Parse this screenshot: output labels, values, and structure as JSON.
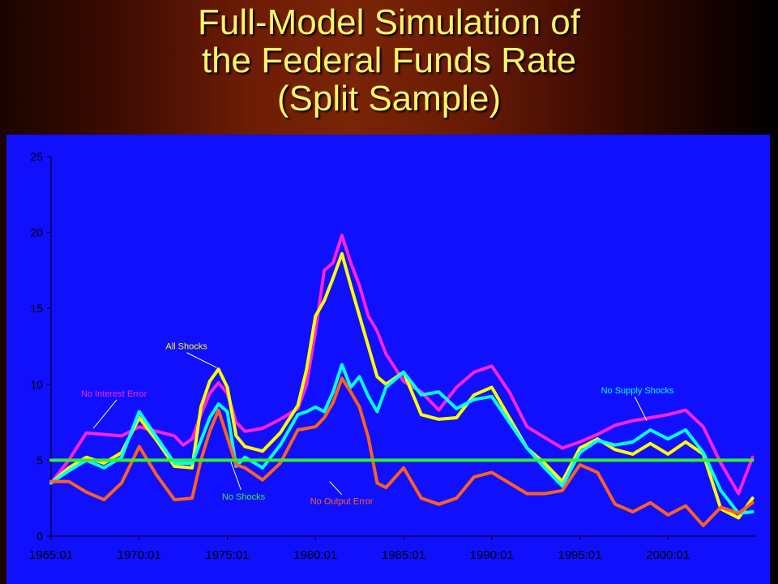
{
  "slide_title_lines": [
    "Full-Model Simulation of",
    "the Federal Funds Rate",
    "(Split Sample)"
  ],
  "chart_data": {
    "type": "line",
    "title": "",
    "xlabel": "",
    "ylabel": "",
    "ylim": [
      0,
      25
    ],
    "y_ticks": [
      0,
      5,
      10,
      15,
      20,
      25
    ],
    "x_ticks": [
      "1965:01",
      "1970:01",
      "1975:01",
      "1980:01",
      "1985:01",
      "1990:01",
      "1995:01",
      "2000:01"
    ],
    "xlim": [
      1965,
      2005
    ],
    "colors": {
      "plot_bg": "#1010ff",
      "all_shocks": "#ffff00",
      "no_interest": "#ff22dd",
      "no_supply": "#00ffff",
      "no_output": "#ff6020",
      "no_shocks": "#33ee33"
    },
    "series": [
      {
        "key": "no_interest",
        "x": [
          1965.0,
          1966.0,
          1967.0,
          1968.0,
          1969.0,
          1970.0,
          1971.0,
          1972.0,
          1972.5,
          1973.0,
          1973.5,
          1974.0,
          1974.5,
          1975.0,
          1975.5,
          1976.0,
          1977.0,
          1978.0,
          1979.0,
          1979.5,
          1980.0,
          1980.5,
          1981.0,
          1981.5,
          1982.0,
          1982.5,
          1983.0,
          1983.5,
          1984.0,
          1985.0,
          1986.0,
          1987.0,
          1988.0,
          1989.0,
          1990.0,
          1991.0,
          1992.0,
          1993.0,
          1994.0,
          1995.0,
          1996.0,
          1997.0,
          1998.0,
          1999.0,
          2000.0,
          2001.0,
          2002.0,
          2003.0,
          2004.0,
          2004.8
        ],
        "y": [
          3.5,
          5.0,
          6.8,
          6.7,
          6.6,
          7.2,
          6.9,
          6.6,
          6.0,
          6.4,
          8.0,
          9.4,
          10.1,
          9.4,
          7.5,
          6.9,
          7.1,
          7.7,
          8.4,
          10.0,
          13.5,
          17.5,
          18.0,
          19.8,
          18.0,
          16.5,
          14.5,
          13.5,
          12.0,
          10.2,
          9.5,
          8.3,
          9.8,
          10.8,
          11.2,
          9.5,
          7.2,
          6.5,
          5.8,
          6.2,
          6.7,
          7.3,
          7.6,
          7.8,
          8.0,
          8.3,
          7.2,
          4.8,
          2.8,
          5.2
        ]
      },
      {
        "key": "all_shocks",
        "x": [
          1965.0,
          1966.0,
          1967.0,
          1968.0,
          1969.0,
          1970.0,
          1971.0,
          1972.0,
          1973.0,
          1973.5,
          1974.0,
          1974.5,
          1975.0,
          1975.5,
          1976.0,
          1977.0,
          1978.0,
          1979.0,
          1979.5,
          1980.0,
          1980.5,
          1981.0,
          1981.5,
          1982.0,
          1982.5,
          1983.0,
          1983.5,
          1984.0,
          1985.0,
          1986.0,
          1987.0,
          1988.0,
          1989.0,
          1990.0,
          1991.0,
          1992.0,
          1993.0,
          1994.0,
          1995.0,
          1996.0,
          1997.0,
          1998.0,
          1999.0,
          2000.0,
          2001.0,
          2002.0,
          2003.0,
          2004.0,
          2004.8
        ],
        "y": [
          3.5,
          4.5,
          5.2,
          4.8,
          5.5,
          7.8,
          6.3,
          4.6,
          4.5,
          8.5,
          10.2,
          11.0,
          9.8,
          6.6,
          5.9,
          5.6,
          6.8,
          8.6,
          11.0,
          14.5,
          15.5,
          17.0,
          18.6,
          16.5,
          14.5,
          12.5,
          10.5,
          10.0,
          10.8,
          8.0,
          7.7,
          7.8,
          9.3,
          9.8,
          7.8,
          5.8,
          4.8,
          3.6,
          5.8,
          6.4,
          5.7,
          5.4,
          6.1,
          5.4,
          6.2,
          5.4,
          1.8,
          1.2,
          2.5
        ]
      },
      {
        "key": "no_supply",
        "x": [
          1965.0,
          1966.0,
          1967.0,
          1968.0,
          1969.0,
          1970.0,
          1971.0,
          1972.0,
          1973.0,
          1973.5,
          1974.0,
          1974.5,
          1975.0,
          1975.5,
          1976.0,
          1977.0,
          1978.0,
          1979.0,
          1979.5,
          1980.0,
          1980.5,
          1981.0,
          1981.5,
          1982.0,
          1982.5,
          1983.0,
          1983.5,
          1984.0,
          1985.0,
          1986.0,
          1987.0,
          1988.0,
          1989.0,
          1990.0,
          1991.0,
          1992.0,
          1993.0,
          1994.0,
          1995.0,
          1996.0,
          1997.0,
          1998.0,
          1999.0,
          2000.0,
          2001.0,
          2002.0,
          2003.0,
          2004.0,
          2004.8
        ],
        "y": [
          3.5,
          4.3,
          5.0,
          4.5,
          5.2,
          8.2,
          6.5,
          4.8,
          4.8,
          6.3,
          7.8,
          8.7,
          8.2,
          4.6,
          5.2,
          4.5,
          6.0,
          8.0,
          8.2,
          8.5,
          8.2,
          9.5,
          11.3,
          9.8,
          10.5,
          9.2,
          8.2,
          9.8,
          10.8,
          9.3,
          9.5,
          8.4,
          9.0,
          9.2,
          7.5,
          5.8,
          4.5,
          3.3,
          5.5,
          6.3,
          6.0,
          6.2,
          7.0,
          6.4,
          7.0,
          5.5,
          3.0,
          1.5,
          1.6
        ]
      },
      {
        "key": "no_output",
        "x": [
          1965.0,
          1966.0,
          1967.0,
          1968.0,
          1969.0,
          1970.0,
          1971.0,
          1972.0,
          1973.0,
          1973.5,
          1974.0,
          1974.5,
          1975.0,
          1975.5,
          1976.0,
          1977.0,
          1978.0,
          1979.0,
          1980.0,
          1980.5,
          1981.0,
          1981.5,
          1982.0,
          1982.5,
          1983.0,
          1983.5,
          1984.0,
          1985.0,
          1986.0,
          1987.0,
          1988.0,
          1989.0,
          1990.0,
          1991.0,
          1992.0,
          1993.0,
          1994.0,
          1995.0,
          1996.0,
          1997.0,
          1998.0,
          1999.0,
          2000.0,
          2001.0,
          2002.0,
          2003.0,
          2004.0,
          2004.8
        ],
        "y": [
          3.6,
          3.6,
          2.9,
          2.4,
          3.5,
          5.9,
          4.0,
          2.4,
          2.5,
          5.0,
          6.9,
          8.3,
          6.5,
          4.7,
          4.5,
          3.7,
          4.8,
          7.0,
          7.2,
          7.8,
          8.8,
          10.4,
          9.5,
          8.5,
          6.5,
          3.5,
          3.2,
          4.5,
          2.5,
          2.1,
          2.5,
          3.9,
          4.2,
          3.5,
          2.8,
          2.8,
          3.0,
          4.7,
          4.2,
          2.1,
          1.6,
          2.2,
          1.4,
          2.0,
          0.7,
          1.9,
          1.5,
          2.2
        ]
      },
      {
        "key": "no_shocks",
        "x": [
          1965.0,
          2004.8
        ],
        "y": [
          5.0,
          5.0
        ]
      }
    ],
    "annotations": [
      {
        "text": "All Shocks",
        "series": "all_shocks",
        "data_x": 1971.5,
        "data_y": 12.3,
        "point_x": 1974.4,
        "point_y": 11.1,
        "anchor": "start"
      },
      {
        "text": "No Interest Error",
        "series": "no_interest",
        "data_x": 1966.7,
        "data_y": 9.2,
        "point_x": 1967.4,
        "point_y": 7.1,
        "anchor": "start"
      },
      {
        "text": "No Supply Shocks",
        "series": "no_supply",
        "data_x": 1996.2,
        "data_y": 9.4,
        "point_x": 1998.8,
        "point_y": 7.6,
        "anchor": "start"
      },
      {
        "text": "No Shocks",
        "series": "no_shocks",
        "data_x": 1974.7,
        "data_y": 2.4,
        "point_x": 1975.2,
        "point_y": 4.9,
        "anchor": "start"
      },
      {
        "text": "No Output Error",
        "series": "no_output",
        "data_x": 1979.7,
        "data_y": 2.1,
        "point_x": 1980.8,
        "point_y": 3.6,
        "anchor": "start"
      }
    ]
  }
}
